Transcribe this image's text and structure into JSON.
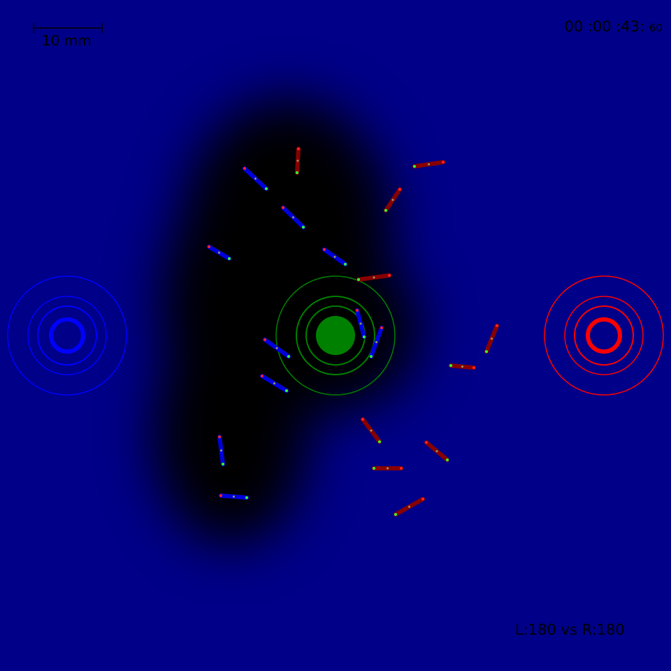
{
  "hud": {
    "scale_label": "10 mm",
    "timer_main": "00 :00 :43:",
    "timer_frac": "60",
    "score": "L:180 vs R:180"
  },
  "colors": {
    "background": "#000088",
    "shadow": "#000000",
    "left_team": "#0000ff",
    "right_team": "#ff0000",
    "goal": "#008000",
    "left_agent_body": "#0000dd",
    "right_agent_body": "#880000",
    "marker_head": "#ff2222",
    "marker_tail": "#33ff33"
  },
  "icons": {
    "left_base": "left-team-target-icon",
    "right_base": "right-team-target-icon",
    "center_goal": "center-goal-icon"
  }
}
